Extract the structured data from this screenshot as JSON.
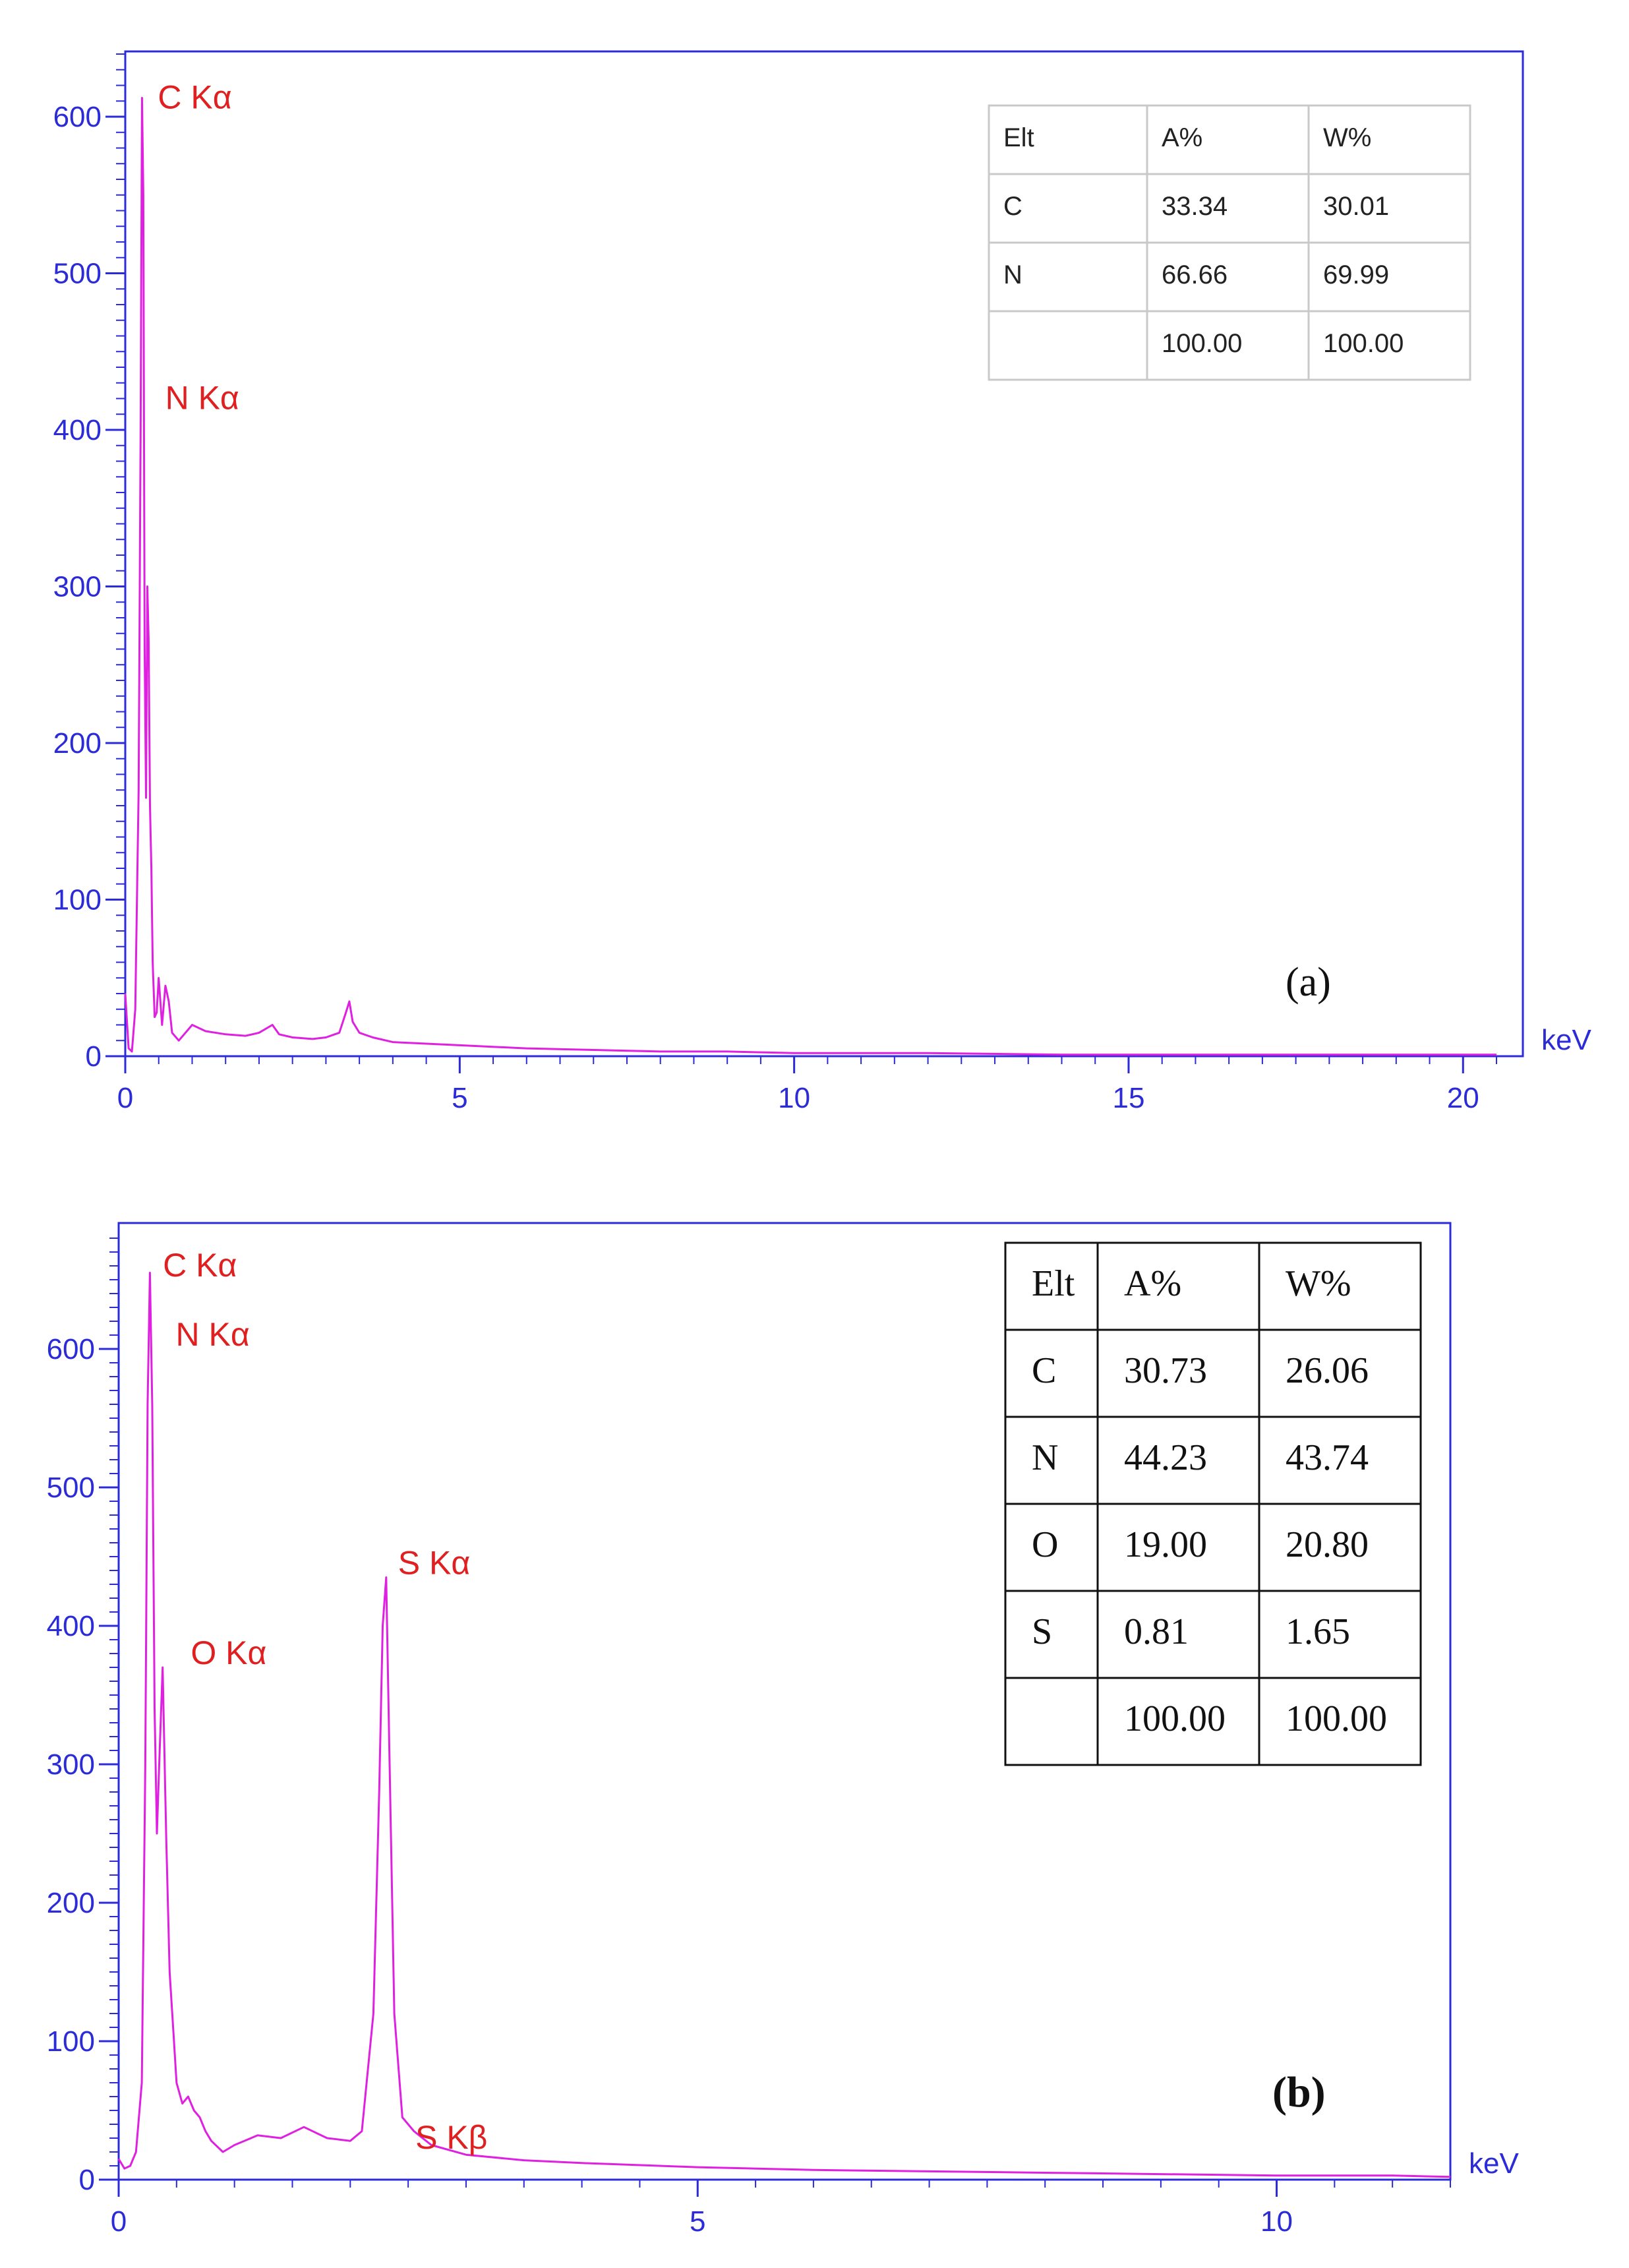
{
  "chart_data": [
    {
      "type": "line",
      "panel_label": "(a)",
      "x_unit": "keV",
      "xlim": [
        0,
        20.5
      ],
      "ylim": [
        0,
        640
      ],
      "x_ticks": [
        0,
        5,
        10,
        15,
        20
      ],
      "y_ticks": [
        0,
        100,
        200,
        300,
        400,
        500,
        600
      ],
      "line_color": "#e020e0",
      "frame_color": "#2b2bd8",
      "series": [
        {
          "x": [
            0,
            0.05,
            0.1,
            0.15,
            0.2,
            0.23,
            0.25,
            0.27,
            0.29,
            0.31,
            0.33,
            0.35,
            0.37,
            0.39,
            0.41,
            0.44,
            0.47,
            0.5,
            0.55,
            0.6,
            0.65,
            0.7,
            0.8,
            1.0,
            1.2,
            1.5,
            1.8,
            2.0,
            2.2,
            2.3,
            2.5,
            2.8,
            3.0,
            3.2,
            3.3,
            3.35,
            3.4,
            3.5,
            3.7,
            4.0,
            4.5,
            5.0,
            6.0,
            7.0,
            8.0,
            9.0,
            10.0,
            12.0,
            14.0,
            16.0,
            18.0,
            20.0,
            20.5
          ],
          "y": [
            40,
            5,
            3,
            30,
            170,
            400,
            612,
            550,
            260,
            165,
            300,
            265,
            160,
            120,
            60,
            25,
            28,
            50,
            20,
            45,
            35,
            15,
            10,
            20,
            16,
            14,
            13,
            15,
            20,
            14,
            12,
            11,
            12,
            15,
            28,
            35,
            22,
            15,
            12,
            9,
            8,
            7,
            5,
            4,
            3,
            3,
            2,
            2,
            1,
            1,
            1,
            1,
            1
          ]
        }
      ],
      "peak_labels": [
        {
          "text": "C Kα",
          "x": 0.28,
          "y": 612
        },
        {
          "text": "N Kα",
          "x": 0.39,
          "y": 420
        }
      ],
      "table": {
        "headers": [
          "Elt",
          "A%",
          "W%"
        ],
        "rows": [
          [
            "C",
            "33.34",
            "30.01"
          ],
          [
            "N",
            "66.66",
            "69.99"
          ],
          [
            "",
            "100.00",
            "100.00"
          ]
        ]
      }
    },
    {
      "type": "line",
      "panel_label": "(b)",
      "x_unit": "keV",
      "xlim": [
        0,
        11.5
      ],
      "ylim": [
        0,
        680
      ],
      "x_ticks": [
        0,
        5,
        10
      ],
      "y_ticks": [
        0,
        100,
        200,
        300,
        400,
        500,
        600
      ],
      "line_color": "#e020e0",
      "frame_color": "#2b2bd8",
      "series": [
        {
          "x": [
            0,
            0.05,
            0.1,
            0.15,
            0.2,
            0.23,
            0.25,
            0.27,
            0.29,
            0.31,
            0.33,
            0.35,
            0.38,
            0.41,
            0.44,
            0.47,
            0.5,
            0.55,
            0.6,
            0.65,
            0.7,
            0.75,
            0.8,
            0.9,
            1.0,
            1.2,
            1.4,
            1.6,
            1.8,
            2.0,
            2.1,
            2.2,
            2.25,
            2.28,
            2.31,
            2.34,
            2.38,
            2.45,
            2.55,
            2.7,
            3.0,
            3.5,
            4.0,
            5.0,
            6.0,
            7.0,
            8.0,
            9.0,
            10.0,
            11.0,
            11.5
          ],
          "y": [
            15,
            8,
            10,
            20,
            70,
            300,
            560,
            655,
            560,
            340,
            250,
            300,
            370,
            250,
            150,
            110,
            70,
            55,
            60,
            50,
            45,
            35,
            28,
            20,
            25,
            32,
            30,
            38,
            30,
            28,
            35,
            120,
            280,
            400,
            435,
            300,
            120,
            45,
            35,
            25,
            18,
            14,
            12,
            9,
            7,
            6,
            5,
            4,
            3,
            3,
            2
          ]
        }
      ],
      "peak_labels": [
        {
          "text": "C Kα",
          "x": 0.28,
          "y": 660
        },
        {
          "text": "N Kα",
          "x": 0.39,
          "y": 610
        },
        {
          "text": "O Kα",
          "x": 0.52,
          "y": 380
        },
        {
          "text": "S Kα",
          "x": 2.31,
          "y": 445
        },
        {
          "text": "S Kβ",
          "x": 2.46,
          "y": 30
        }
      ],
      "table": {
        "headers": [
          "Elt",
          "A%",
          "W%"
        ],
        "rows": [
          [
            "C",
            "30.73",
            "26.06"
          ],
          [
            "N",
            "44.23",
            "43.74"
          ],
          [
            "O",
            "19.00",
            "20.80"
          ],
          [
            "S",
            "0.81",
            "1.65"
          ],
          [
            "",
            "100.00",
            "100.00"
          ]
        ]
      }
    }
  ]
}
